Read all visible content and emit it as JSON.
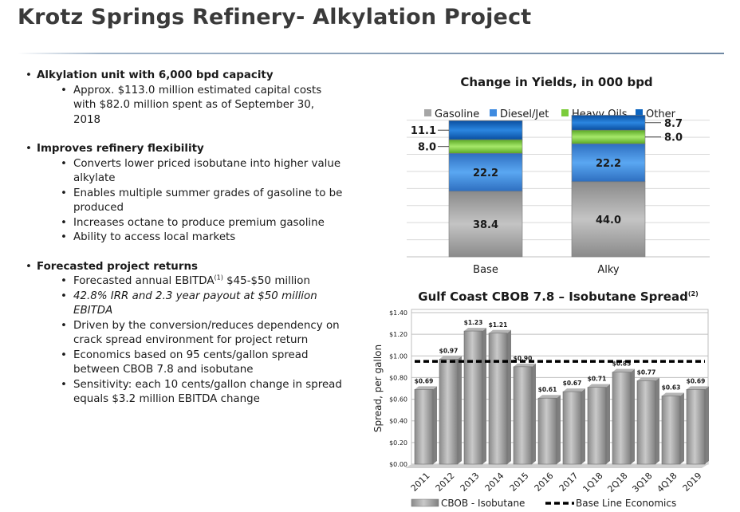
{
  "title": "Krotz Springs Refinery- Alkylation Project",
  "bullets": {
    "b1": "Alkylation unit with 6,000 bpd capacity",
    "b1_sub1": "Approx. $113.0 million estimated capital costs with $82.0 million spent as of September 30, 2018",
    "b2": "Improves refinery flexibility",
    "b2_sub1": "Converts lower priced isobutane into higher value alkylate",
    "b2_sub2": "Enables multiple summer grades of gasoline to be produced",
    "b2_sub3": "Increases octane to produce premium gasoline",
    "b2_sub4": "Ability to access local markets",
    "b3": "Forecasted project returns",
    "b3_sub1_pre": "Forecasted annual EBITDA",
    "b3_sub1_sup": "(1)",
    "b3_sub1_post": " $45-$50 million",
    "b3_sub2": "42.8% IRR and 2.3 year payout at $50 million EBITDA",
    "b3_sub3": "Driven by the conversion/reduces dependency on crack spread environment for project return",
    "b3_sub4": "Economics based on 95 cents/gallon spread between CBOB 7.8 and isobutane",
    "b3_sub5": "Sensitivity: each 10 cents/gallon change in spread equals $3.2 million EBITDA change"
  },
  "chart_data": [
    {
      "type": "bar",
      "stacked": true,
      "title": "Change in Yields, in 000 bpd",
      "categories": [
        "Base",
        "Alky"
      ],
      "series": [
        {
          "name": "Gasoline",
          "values": [
            38.4,
            44.0
          ],
          "labels": [
            "38.4",
            "44.0"
          ],
          "color": "#a6a6a6"
        },
        {
          "name": "Diesel/Jet",
          "values": [
            22.2,
            22.2
          ],
          "labels": [
            "22.2",
            "22.2"
          ],
          "color": "#3f8be0"
        },
        {
          "name": "Heavy Oils",
          "values": [
            8.0,
            8.0
          ],
          "labels": [
            "8.0",
            "8.0"
          ],
          "color": "#7ccc3c"
        },
        {
          "name": "Other",
          "values": [
            11.1,
            8.7
          ],
          "labels": [
            "11.1",
            "8.7"
          ],
          "color": "#0c64c0"
        }
      ],
      "ylim": [
        0,
        85
      ],
      "legend": "top",
      "grid": true
    },
    {
      "type": "bar",
      "title": "Gulf Coast CBOB 7.8 – Isobutane Spread",
      "title_sup": "(2)",
      "categories": [
        "2011",
        "2012",
        "2013",
        "2014",
        "2015",
        "2016",
        "2017",
        "1Q18",
        "2Q18",
        "3Q18",
        "4Q18",
        "2019"
      ],
      "series": [
        {
          "name": "CBOB - Isobutane",
          "values": [
            0.69,
            0.97,
            1.23,
            1.21,
            0.9,
            0.61,
            0.67,
            0.71,
            0.85,
            0.77,
            0.63,
            0.69
          ],
          "labels": [
            "$0.69",
            "$0.97",
            "$1.23",
            "$1.21",
            "$0.90",
            "$0.61",
            "$0.67",
            "$0.71",
            "$0.85",
            "$0.77",
            "$0.63",
            "$0.69"
          ],
          "color": "#a6a6a6"
        }
      ],
      "baseline": {
        "name": "Base Line Economics",
        "value": 0.95
      },
      "ylabel": "Spread, per gallon",
      "yticks": [
        "$0.00",
        "$0.20",
        "$0.40",
        "$0.60",
        "$0.80",
        "$1.00",
        "$1.20",
        "$1.40"
      ],
      "ylim": [
        0,
        1.4
      ],
      "legend": "bottom",
      "grid": true
    }
  ]
}
